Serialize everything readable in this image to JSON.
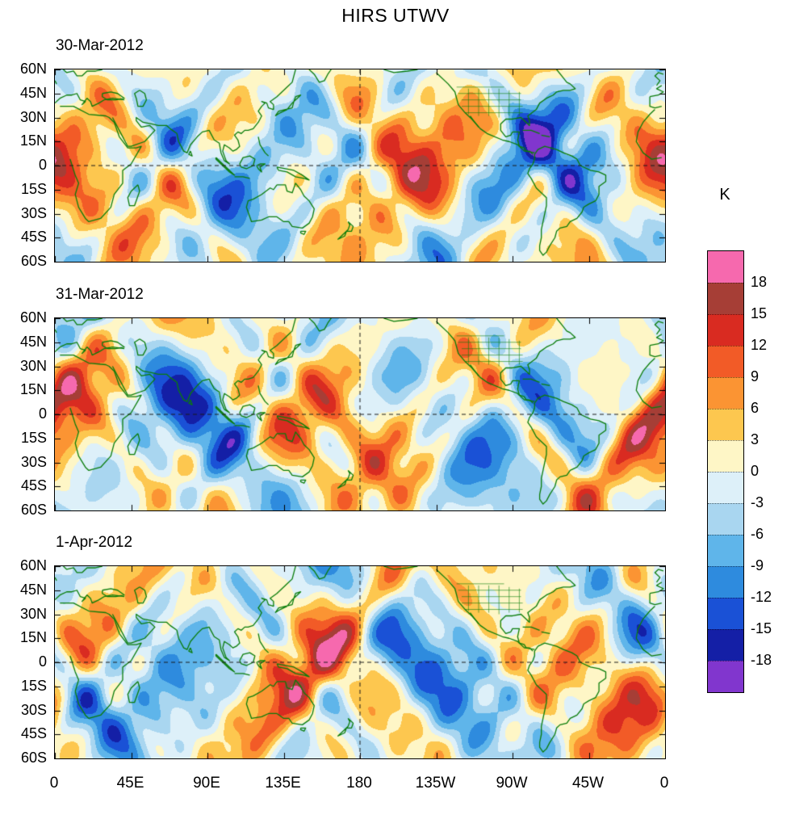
{
  "title": "HIRS UTWV",
  "panels": [
    {
      "date": "30-Mar-2012"
    },
    {
      "date": "31-Mar-2012"
    },
    {
      "date": "1-Apr-2012"
    }
  ],
  "axes": {
    "y_ticks": [
      "60N",
      "45N",
      "30N",
      "15N",
      "0",
      "15S",
      "30S",
      "45S",
      "60S"
    ],
    "x_ticks": [
      "0",
      "45E",
      "90E",
      "135E",
      "180",
      "135W",
      "90W",
      "45W",
      "0"
    ]
  },
  "colorbar": {
    "label": "K",
    "tick_labels": [
      "18",
      "15",
      "12",
      "9",
      "6",
      "3",
      "0",
      "-3",
      "-6",
      "-9",
      "-12",
      "-15",
      "-18"
    ],
    "colors_top_to_bottom": [
      "#F669AE",
      "#A63E36",
      "#D92B21",
      "#F25B27",
      "#FB9433",
      "#FDC74F",
      "#FEF6C6",
      "#DDF0F9",
      "#A9D6F0",
      "#5FB5EA",
      "#2E8BDE",
      "#1A51D6",
      "#141FA6",
      "#8136CE"
    ]
  },
  "map": {
    "coastline_color": "#0A7D0A",
    "reference_lines": [
      "equator (dashed)",
      "180 longitude (dashed)"
    ]
  },
  "chart_data": {
    "type": "heatmap",
    "title": "HIRS UTWV",
    "units": "K",
    "contour_interval": 3,
    "value_range": [
      -18,
      18
    ],
    "panels": [
      {
        "date": "30-Mar-2012"
      },
      {
        "date": "31-Mar-2012"
      },
      {
        "date": "1-Apr-2012"
      }
    ],
    "x_axis": {
      "tick_labels": [
        "0",
        "45E",
        "90E",
        "135E",
        "180",
        "135W",
        "90W",
        "45W",
        "0"
      ],
      "range_deg_lon": [
        0,
        360
      ]
    },
    "y_axis": {
      "tick_labels": [
        "60N",
        "45N",
        "30N",
        "15N",
        "0",
        "15S",
        "30S",
        "45S",
        "60S"
      ],
      "range_deg_lat": [
        60,
        -60
      ]
    },
    "colorbar": {
      "label": "K",
      "tick_values": [
        18,
        15,
        12,
        9,
        6,
        3,
        0,
        -3,
        -6,
        -9,
        -12,
        -15,
        -18
      ],
      "band_colors_top_to_bottom": [
        "#F669AE",
        "#A63E36",
        "#D92B21",
        "#F25B27",
        "#FB9433",
        "#FDC74F",
        "#FEF6C6",
        "#DDF0F9",
        "#A9D6F0",
        "#5FB5EA",
        "#2E8BDE",
        "#1A51D6",
        "#141FA6",
        "#8136CE"
      ]
    },
    "overlays": [
      "green coastlines",
      "US state borders",
      "dashed equator line",
      "dashed 180-longitude line"
    ]
  }
}
